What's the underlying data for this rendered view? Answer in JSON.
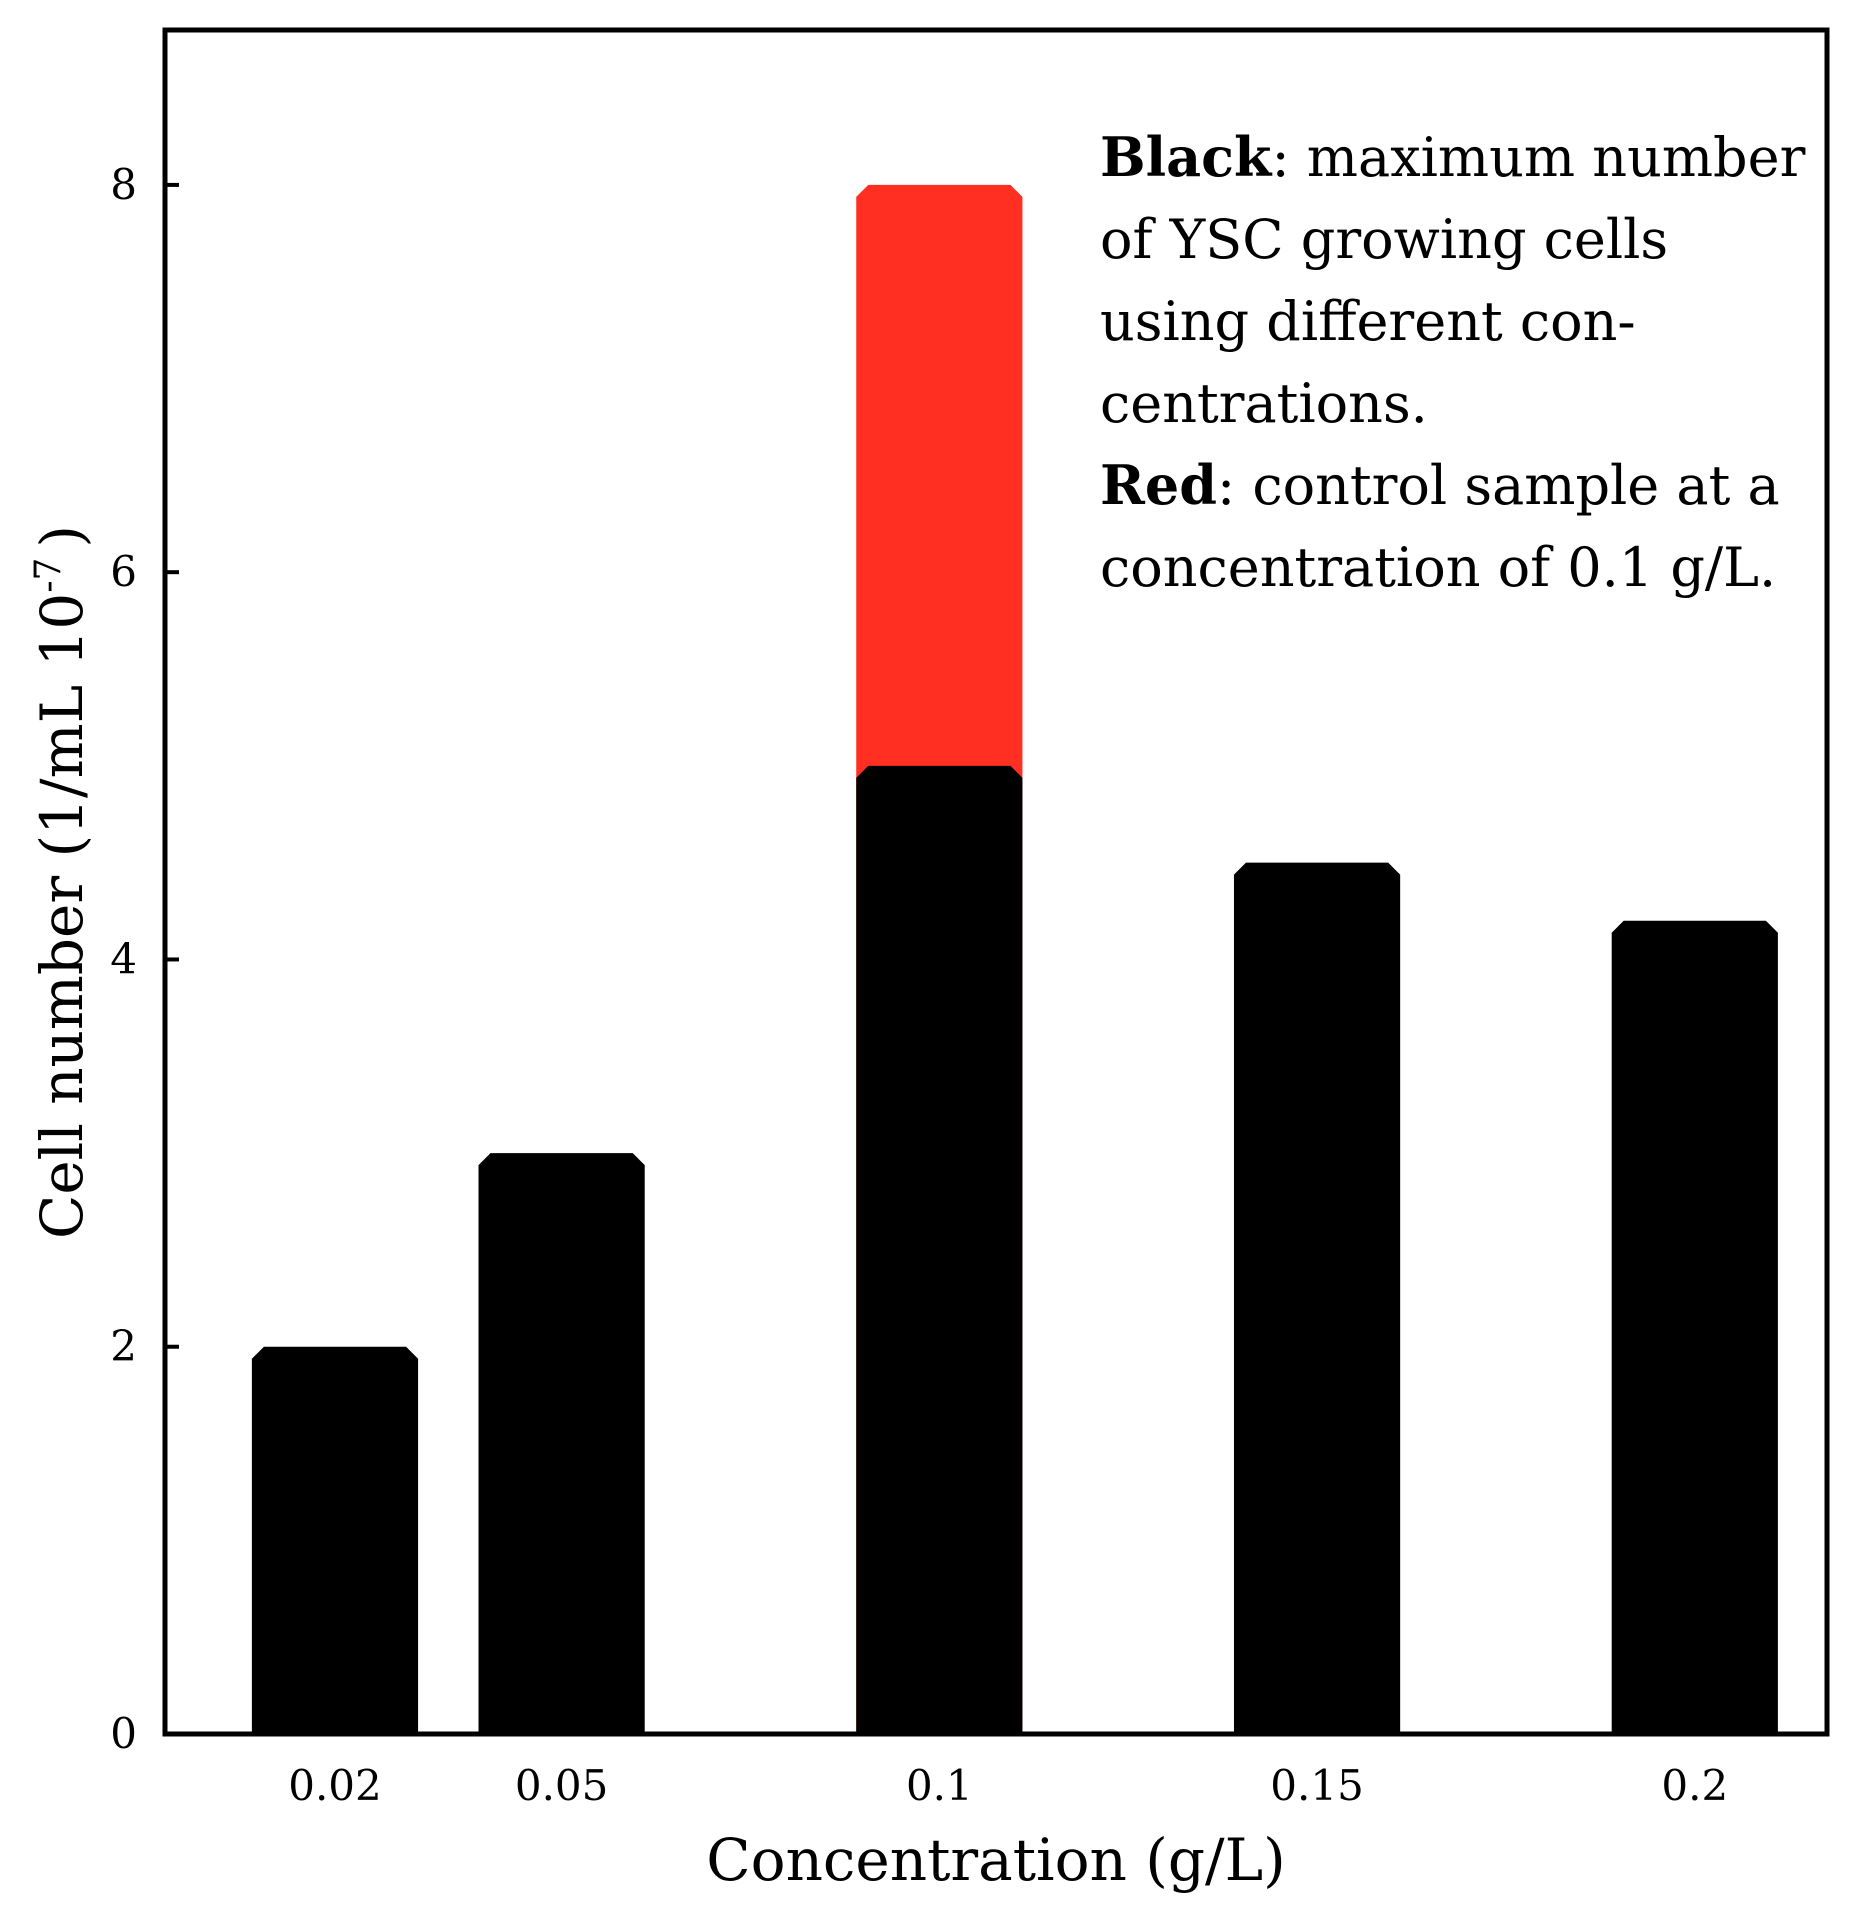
{
  "chart_data": {
    "type": "bar",
    "xlabel": "Concentration (g/L)",
    "ylabel_main": "Cell number (1/mL 10",
    "ylabel_exp": "-7",
    "ylabel_close": ")",
    "ylim": [
      0,
      8.8
    ],
    "x_positions": [
      0.02,
      0.05,
      0.1,
      0.15,
      0.2
    ],
    "xlim": [
      -0.0025,
      0.2175
    ],
    "categories": [
      "0.02",
      "0.05",
      "0.1",
      "0.15",
      "0.2"
    ],
    "yticks": [
      0,
      2,
      4,
      6,
      8
    ],
    "ytick_labels": [
      "0",
      "2",
      "4",
      "6",
      "8"
    ],
    "bar_width": 0.022,
    "series": [
      {
        "name": "Red",
        "color": "#ff2f22",
        "values": [
          null,
          null,
          8.0,
          null,
          null
        ]
      },
      {
        "name": "Black",
        "color": "#000000",
        "values": [
          2.0,
          3.0,
          5.0,
          4.5,
          4.2
        ]
      }
    ],
    "legend": [
      {
        "bold": "Black",
        "lines": [
          ": maximum number",
          "of YSC growing cells",
          "using different con-",
          "centrations."
        ]
      },
      {
        "bold": "Red",
        "lines": [
          ": control sample at a",
          "concentration of 0.1 g/L."
        ]
      }
    ]
  }
}
